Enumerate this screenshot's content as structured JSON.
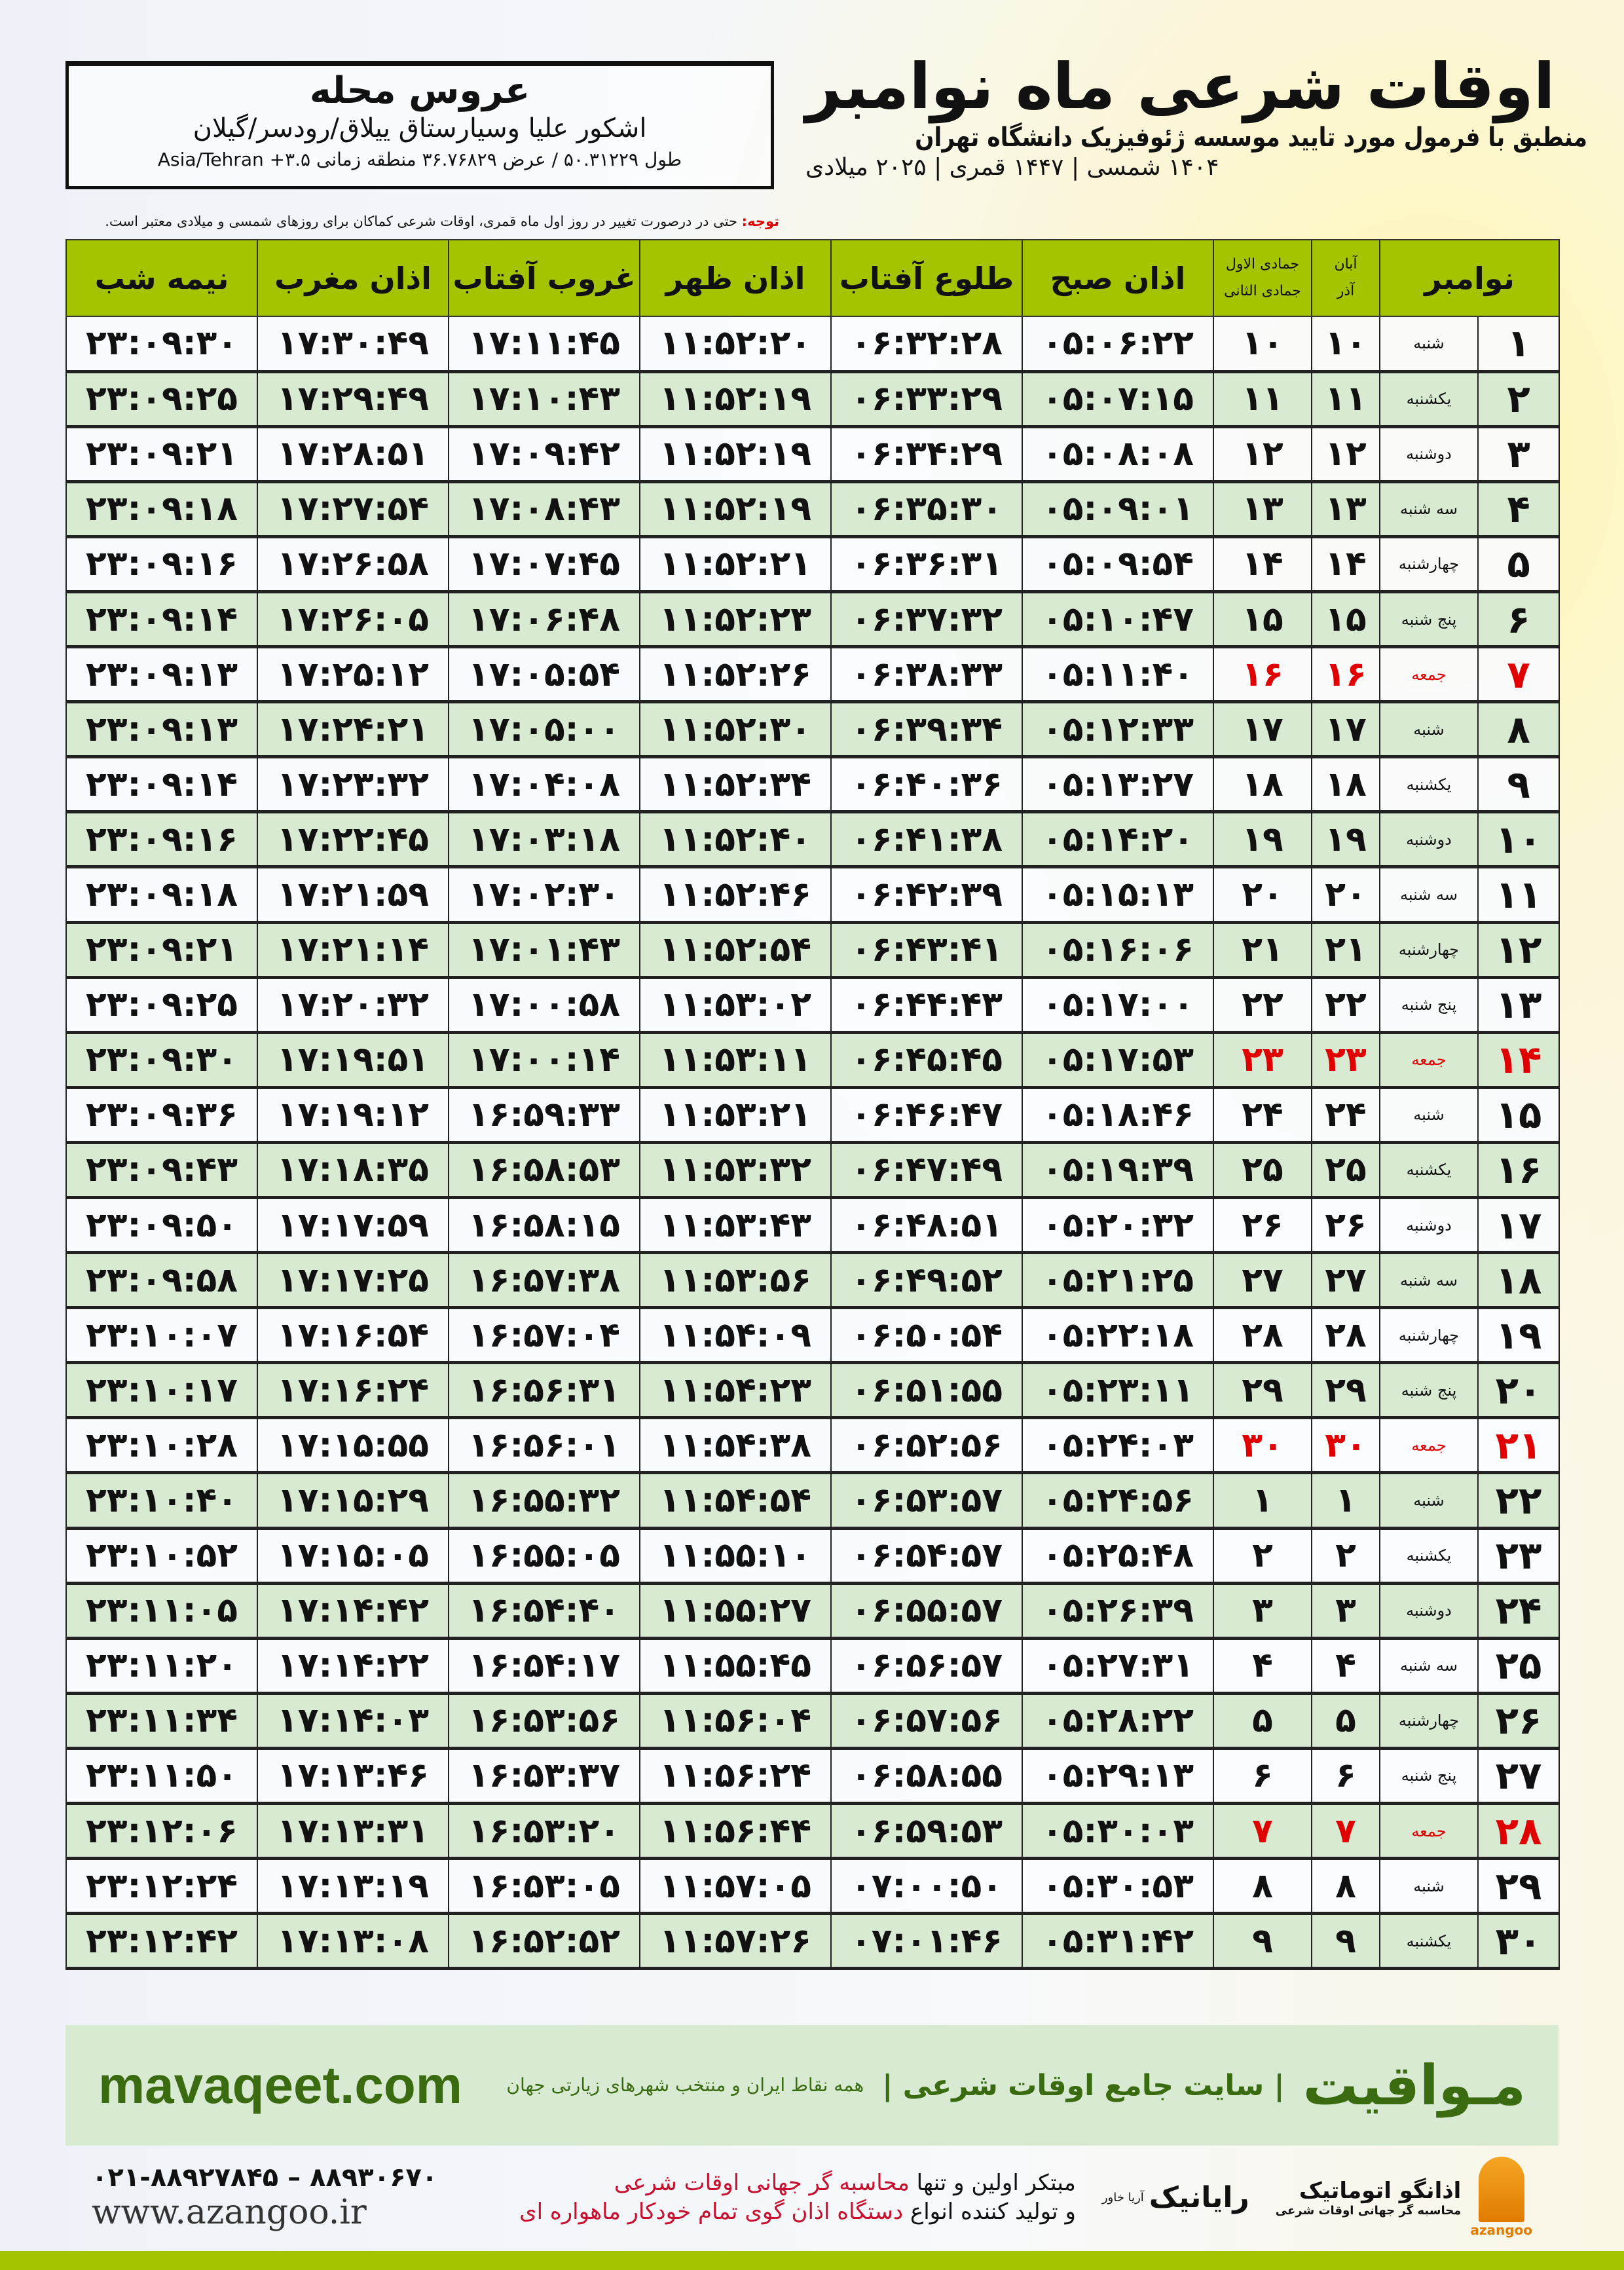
{
  "header": {
    "title": "اوقات شرعی ماه نوامبر",
    "subtitle": "منطبق با فرمول مورد تایید موسسه ژئوفیزیک دانشگاه تهران",
    "years": "۱۴۰۴ شمسی | ۱۴۴۷ قمری | ۲۰۲۵ میلادی"
  },
  "location": {
    "name": "عروس محله",
    "region": "اشکور علیا وسیارستاق ییلاق/رودسر/گیلان",
    "coords": "طول ۵۰.۳۱۲۲۹ / عرض ۳۶.۷۶۸۲۹ منطقه زمانی ۳.۵+ Asia/Tehran"
  },
  "note": {
    "label": "توجه:",
    "text": " حتی در درصورت تغییر در روز اول ماه قمری، اوقات شرعی کماکان برای روزهای شمسی و میلادی معتبر است."
  },
  "table": {
    "headers": {
      "month": "نوامبر",
      "shamsi_top": "آبان",
      "shamsi_bottom": "آذر",
      "hijri_top": "جمادی الاول",
      "hijri_bottom": "جمادی الثانی",
      "fajr": "اذان صبح",
      "sunrise": "طلوع آفتاب",
      "dhuhr": "اذان ظهر",
      "sunset": "غروب آفتاب",
      "maghrib": "اذان مغرب",
      "midnight": "نیمه شب"
    },
    "highlight_color": "#e00000",
    "rows": [
      [
        "۱",
        "شنبه",
        "۱۰",
        "۱۰",
        "۰۵:۰۶:۲۲",
        "۰۶:۳۲:۲۸",
        "۱۱:۵۲:۲۰",
        "۱۷:۱۱:۴۵",
        "۱۷:۳۰:۴۹",
        "۲۳:۰۹:۳۰"
      ],
      [
        "۲",
        "یکشنبه",
        "۱۱",
        "۱۱",
        "۰۵:۰۷:۱۵",
        "۰۶:۳۳:۲۹",
        "۱۱:۵۲:۱۹",
        "۱۷:۱۰:۴۳",
        "۱۷:۲۹:۴۹",
        "۲۳:۰۹:۲۵"
      ],
      [
        "۳",
        "دوشنبه",
        "۱۲",
        "۱۲",
        "۰۵:۰۸:۰۸",
        "۰۶:۳۴:۲۹",
        "۱۱:۵۲:۱۹",
        "۱۷:۰۹:۴۲",
        "۱۷:۲۸:۵۱",
        "۲۳:۰۹:۲۱"
      ],
      [
        "۴",
        "سه شنبه",
        "۱۳",
        "۱۳",
        "۰۵:۰۹:۰۱",
        "۰۶:۳۵:۳۰",
        "۱۱:۵۲:۱۹",
        "۱۷:۰۸:۴۳",
        "۱۷:۲۷:۵۴",
        "۲۳:۰۹:۱۸"
      ],
      [
        "۵",
        "چهارشنبه",
        "۱۴",
        "۱۴",
        "۰۵:۰۹:۵۴",
        "۰۶:۳۶:۳۱",
        "۱۱:۵۲:۲۱",
        "۱۷:۰۷:۴۵",
        "۱۷:۲۶:۵۸",
        "۲۳:۰۹:۱۶"
      ],
      [
        "۶",
        "پنج شنبه",
        "۱۵",
        "۱۵",
        "۰۵:۱۰:۴۷",
        "۰۶:۳۷:۳۲",
        "۱۱:۵۲:۲۳",
        "۱۷:۰۶:۴۸",
        "۱۷:۲۶:۰۵",
        "۲۳:۰۹:۱۴"
      ],
      [
        "۷",
        "جمعه",
        "۱۶",
        "۱۶",
        "۰۵:۱۱:۴۰",
        "۰۶:۳۸:۳۳",
        "۱۱:۵۲:۲۶",
        "۱۷:۰۵:۵۴",
        "۱۷:۲۵:۱۲",
        "۲۳:۰۹:۱۳"
      ],
      [
        "۸",
        "شنبه",
        "۱۷",
        "۱۷",
        "۰۵:۱۲:۳۳",
        "۰۶:۳۹:۳۴",
        "۱۱:۵۲:۳۰",
        "۱۷:۰۵:۰۰",
        "۱۷:۲۴:۲۱",
        "۲۳:۰۹:۱۳"
      ],
      [
        "۹",
        "یکشنبه",
        "۱۸",
        "۱۸",
        "۰۵:۱۳:۲۷",
        "۰۶:۴۰:۳۶",
        "۱۱:۵۲:۳۴",
        "۱۷:۰۴:۰۸",
        "۱۷:۲۳:۳۲",
        "۲۳:۰۹:۱۴"
      ],
      [
        "۱۰",
        "دوشنبه",
        "۱۹",
        "۱۹",
        "۰۵:۱۴:۲۰",
        "۰۶:۴۱:۳۸",
        "۱۱:۵۲:۴۰",
        "۱۷:۰۳:۱۸",
        "۱۷:۲۲:۴۵",
        "۲۳:۰۹:۱۶"
      ],
      [
        "۱۱",
        "سه شنبه",
        "۲۰",
        "۲۰",
        "۰۵:۱۵:۱۳",
        "۰۶:۴۲:۳۹",
        "۱۱:۵۲:۴۶",
        "۱۷:۰۲:۳۰",
        "۱۷:۲۱:۵۹",
        "۲۳:۰۹:۱۸"
      ],
      [
        "۱۲",
        "چهارشنبه",
        "۲۱",
        "۲۱",
        "۰۵:۱۶:۰۶",
        "۰۶:۴۳:۴۱",
        "۱۱:۵۲:۵۴",
        "۱۷:۰۱:۴۳",
        "۱۷:۲۱:۱۴",
        "۲۳:۰۹:۲۱"
      ],
      [
        "۱۳",
        "پنج شنبه",
        "۲۲",
        "۲۲",
        "۰۵:۱۷:۰۰",
        "۰۶:۴۴:۴۳",
        "۱۱:۵۳:۰۲",
        "۱۷:۰۰:۵۸",
        "۱۷:۲۰:۳۲",
        "۲۳:۰۹:۲۵"
      ],
      [
        "۱۴",
        "جمعه",
        "۲۳",
        "۲۳",
        "۰۵:۱۷:۵۳",
        "۰۶:۴۵:۴۵",
        "۱۱:۵۳:۱۱",
        "۱۷:۰۰:۱۴",
        "۱۷:۱۹:۵۱",
        "۲۳:۰۹:۳۰"
      ],
      [
        "۱۵",
        "شنبه",
        "۲۴",
        "۲۴",
        "۰۵:۱۸:۴۶",
        "۰۶:۴۶:۴۷",
        "۱۱:۵۳:۲۱",
        "۱۶:۵۹:۳۳",
        "۱۷:۱۹:۱۲",
        "۲۳:۰۹:۳۶"
      ],
      [
        "۱۶",
        "یکشنبه",
        "۲۵",
        "۲۵",
        "۰۵:۱۹:۳۹",
        "۰۶:۴۷:۴۹",
        "۱۱:۵۳:۳۲",
        "۱۶:۵۸:۵۳",
        "۱۷:۱۸:۳۵",
        "۲۳:۰۹:۴۳"
      ],
      [
        "۱۷",
        "دوشنبه",
        "۲۶",
        "۲۶",
        "۰۵:۲۰:۳۲",
        "۰۶:۴۸:۵۱",
        "۱۱:۵۳:۴۳",
        "۱۶:۵۸:۱۵",
        "۱۷:۱۷:۵۹",
        "۲۳:۰۹:۵۰"
      ],
      [
        "۱۸",
        "سه شنبه",
        "۲۷",
        "۲۷",
        "۰۵:۲۱:۲۵",
        "۰۶:۴۹:۵۲",
        "۱۱:۵۳:۵۶",
        "۱۶:۵۷:۳۸",
        "۱۷:۱۷:۲۵",
        "۲۳:۰۹:۵۸"
      ],
      [
        "۱۹",
        "چهارشنبه",
        "۲۸",
        "۲۸",
        "۰۵:۲۲:۱۸",
        "۰۶:۵۰:۵۴",
        "۱۱:۵۴:۰۹",
        "۱۶:۵۷:۰۴",
        "۱۷:۱۶:۵۴",
        "۲۳:۱۰:۰۷"
      ],
      [
        "۲۰",
        "پنج شنبه",
        "۲۹",
        "۲۹",
        "۰۵:۲۳:۱۱",
        "۰۶:۵۱:۵۵",
        "۱۱:۵۴:۲۳",
        "۱۶:۵۶:۳۱",
        "۱۷:۱۶:۲۴",
        "۲۳:۱۰:۱۷"
      ],
      [
        "۲۱",
        "جمعه",
        "۳۰",
        "۳۰",
        "۰۵:۲۴:۰۳",
        "۰۶:۵۲:۵۶",
        "۱۱:۵۴:۳۸",
        "۱۶:۵۶:۰۱",
        "۱۷:۱۵:۵۵",
        "۲۳:۱۰:۲۸"
      ],
      [
        "۲۲",
        "شنبه",
        "۱",
        "۱",
        "۰۵:۲۴:۵۶",
        "۰۶:۵۳:۵۷",
        "۱۱:۵۴:۵۴",
        "۱۶:۵۵:۳۲",
        "۱۷:۱۵:۲۹",
        "۲۳:۱۰:۴۰"
      ],
      [
        "۲۳",
        "یکشنبه",
        "۲",
        "۲",
        "۰۵:۲۵:۴۸",
        "۰۶:۵۴:۵۷",
        "۱۱:۵۵:۱۰",
        "۱۶:۵۵:۰۵",
        "۱۷:۱۵:۰۵",
        "۲۳:۱۰:۵۲"
      ],
      [
        "۲۴",
        "دوشنبه",
        "۳",
        "۳",
        "۰۵:۲۶:۳۹",
        "۰۶:۵۵:۵۷",
        "۱۱:۵۵:۲۷",
        "۱۶:۵۴:۴۰",
        "۱۷:۱۴:۴۲",
        "۲۳:۱۱:۰۵"
      ],
      [
        "۲۵",
        "سه شنبه",
        "۴",
        "۴",
        "۰۵:۲۷:۳۱",
        "۰۶:۵۶:۵۷",
        "۱۱:۵۵:۴۵",
        "۱۶:۵۴:۱۷",
        "۱۷:۱۴:۲۲",
        "۲۳:۱۱:۲۰"
      ],
      [
        "۲۶",
        "چهارشنبه",
        "۵",
        "۵",
        "۰۵:۲۸:۲۲",
        "۰۶:۵۷:۵۶",
        "۱۱:۵۶:۰۴",
        "۱۶:۵۳:۵۶",
        "۱۷:۱۴:۰۳",
        "۲۳:۱۱:۳۴"
      ],
      [
        "۲۷",
        "پنج شنبه",
        "۶",
        "۶",
        "۰۵:۲۹:۱۳",
        "۰۶:۵۸:۵۵",
        "۱۱:۵۶:۲۴",
        "۱۶:۵۳:۳۷",
        "۱۷:۱۳:۴۶",
        "۲۳:۱۱:۵۰"
      ],
      [
        "۲۸",
        "جمعه",
        "۷",
        "۷",
        "۰۵:۳۰:۰۳",
        "۰۶:۵۹:۵۳",
        "۱۱:۵۶:۴۴",
        "۱۶:۵۳:۲۰",
        "۱۷:۱۳:۳۱",
        "۲۳:۱۲:۰۶"
      ],
      [
        "۲۹",
        "شنبه",
        "۸",
        "۸",
        "۰۵:۳۰:۵۳",
        "۰۷:۰۰:۵۰",
        "۱۱:۵۷:۰۵",
        "۱۶:۵۳:۰۵",
        "۱۷:۱۳:۱۹",
        "۲۳:۱۲:۲۴"
      ],
      [
        "۳۰",
        "یکشنبه",
        "۹",
        "۹",
        "۰۵:۳۱:۴۲",
        "۰۷:۰۱:۴۶",
        "۱۱:۵۷:۲۶",
        "۱۶:۵۲:۵۲",
        "۱۷:۱۳:۰۸",
        "۲۳:۱۲:۴۲"
      ]
    ]
  },
  "footer": {
    "brand": "مـواقیت",
    "slogan": "| سایت جامع اوقات شرعی |",
    "slogan2": "همه نقاط ایران و منتخب شهرهای زیارتی جهان",
    "site": "mavaqeet.com",
    "line1_a": "مبتکر اولین و تنها ",
    "line1_b": "محاسبه گر جهانی اوقات شرعی",
    "line2_a": "و تولید کننده انواع ",
    "line2_b": "دستگاه اذان گوی تمام خودکار ماهواره ای",
    "phones": "۰۲۱-۸۸۹۲۷۸۴۵ – ۸۸۹۳۰۶۷۰",
    "web": "www.azangoo.ir",
    "logo_raianik": "رایانیک",
    "logo_raianik_sub": "آریا خاور",
    "logo_azangoo": "اذانگو اتوماتیک",
    "logo_azangoo_sub": "محاسبه گر جهانی اوقات شرعی",
    "logo_azangoo_en": "azangoo",
    "colors": {
      "green": "#a5c400",
      "band": "#d9ead3",
      "brand": "#3a6b10",
      "red": "#c8102e"
    }
  }
}
